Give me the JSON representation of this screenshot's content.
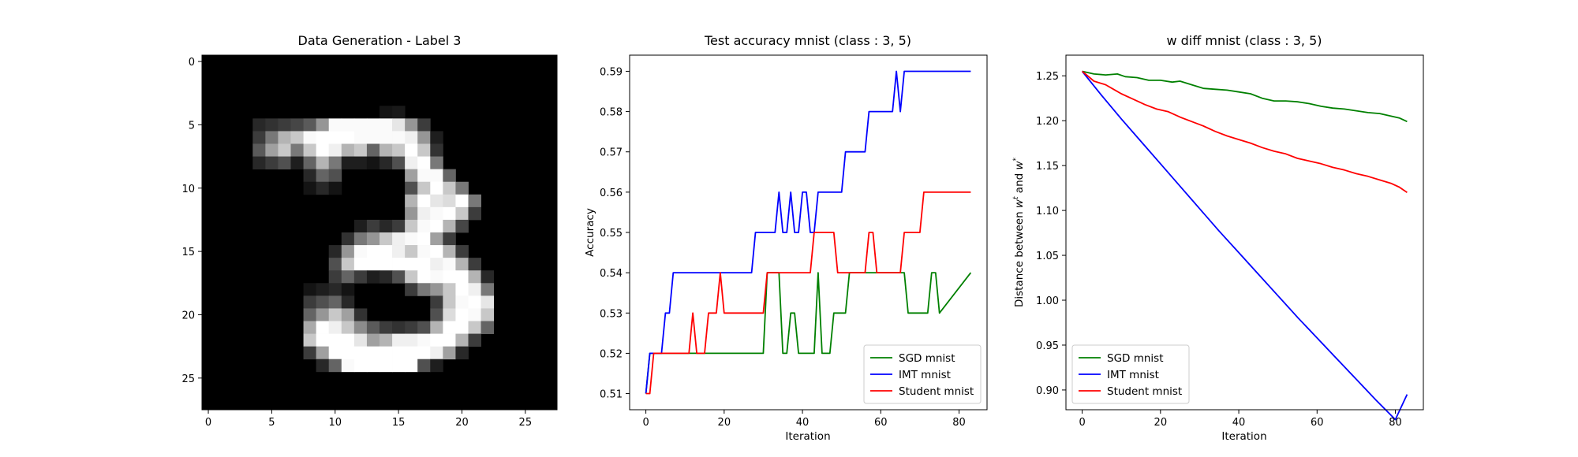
{
  "chart_data": [
    {
      "type": "heatmap",
      "title": "Data Generation - Label 3",
      "xlabel": "",
      "ylabel": "",
      "xlim": [
        -0.5,
        27.5
      ],
      "ylim": [
        27.5,
        -0.5
      ],
      "xticks": [
        0,
        5,
        10,
        15,
        20,
        25
      ],
      "yticks": [
        0,
        5,
        10,
        15,
        20,
        25
      ],
      "colormap": "gray",
      "pixels": [
        [
          0,
          0,
          0,
          0,
          0,
          0,
          0,
          0,
          0,
          0,
          0,
          0,
          0,
          0,
          0,
          0,
          0,
          0,
          0,
          0,
          0,
          0,
          0,
          0,
          0,
          0,
          0,
          0
        ],
        [
          0,
          0,
          0,
          0,
          0,
          0,
          0,
          0,
          0,
          0,
          0,
          0,
          0,
          0,
          0,
          0,
          0,
          0,
          0,
          0,
          0,
          0,
          0,
          0,
          0,
          0,
          0,
          0
        ],
        [
          0,
          0,
          0,
          0,
          0,
          0,
          0,
          0,
          0,
          0,
          0,
          0,
          0,
          0,
          0,
          0,
          0,
          0,
          0,
          0,
          0,
          0,
          0,
          0,
          0,
          0,
          0,
          0
        ],
        [
          0,
          0,
          0,
          0,
          0,
          0,
          0,
          0,
          0,
          0,
          0,
          0,
          0,
          0,
          0,
          0,
          0,
          0,
          0,
          0,
          0,
          0,
          0,
          0,
          0,
          0,
          0,
          0
        ],
        [
          0,
          0,
          0,
          0,
          0,
          0,
          0,
          0,
          0,
          0,
          0,
          0,
          0,
          0,
          20,
          25,
          0,
          0,
          0,
          0,
          0,
          0,
          0,
          0,
          0,
          0,
          0,
          0
        ],
        [
          0,
          0,
          0,
          0,
          40,
          50,
          60,
          70,
          90,
          150,
          250,
          250,
          250,
          250,
          250,
          230,
          150,
          60,
          0,
          0,
          0,
          0,
          0,
          0,
          0,
          0,
          0,
          0
        ],
        [
          0,
          0,
          0,
          0,
          60,
          120,
          180,
          200,
          250,
          255,
          255,
          255,
          250,
          250,
          250,
          250,
          240,
          150,
          30,
          0,
          0,
          0,
          0,
          0,
          0,
          0,
          0,
          0
        ],
        [
          0,
          0,
          0,
          0,
          90,
          160,
          200,
          120,
          200,
          255,
          240,
          180,
          200,
          100,
          180,
          200,
          255,
          200,
          50,
          0,
          0,
          0,
          0,
          0,
          0,
          0,
          0,
          0
        ],
        [
          0,
          0,
          0,
          0,
          40,
          60,
          80,
          30,
          100,
          180,
          120,
          30,
          30,
          20,
          40,
          80,
          240,
          255,
          120,
          0,
          0,
          0,
          0,
          0,
          0,
          0,
          0,
          0
        ],
        [
          0,
          0,
          0,
          0,
          0,
          0,
          0,
          0,
          40,
          100,
          80,
          0,
          0,
          0,
          0,
          0,
          160,
          250,
          250,
          100,
          0,
          0,
          0,
          0,
          0,
          0,
          0,
          0
        ],
        [
          0,
          0,
          0,
          0,
          0,
          0,
          0,
          0,
          20,
          40,
          20,
          0,
          0,
          0,
          0,
          0,
          80,
          200,
          255,
          200,
          120,
          0,
          0,
          0,
          0,
          0,
          0,
          0
        ],
        [
          0,
          0,
          0,
          0,
          0,
          0,
          0,
          0,
          0,
          0,
          0,
          0,
          0,
          0,
          0,
          0,
          180,
          255,
          230,
          220,
          255,
          120,
          0,
          0,
          0,
          0,
          0,
          0
        ],
        [
          0,
          0,
          0,
          0,
          0,
          0,
          0,
          0,
          0,
          0,
          0,
          0,
          0,
          0,
          0,
          0,
          150,
          240,
          250,
          255,
          200,
          60,
          0,
          0,
          0,
          0,
          0,
          0
        ],
        [
          0,
          0,
          0,
          0,
          0,
          0,
          0,
          0,
          0,
          0,
          0,
          0,
          30,
          60,
          40,
          60,
          200,
          250,
          255,
          180,
          70,
          0,
          0,
          0,
          0,
          0,
          0,
          0
        ],
        [
          0,
          0,
          0,
          0,
          0,
          0,
          0,
          0,
          0,
          0,
          0,
          50,
          120,
          150,
          200,
          240,
          250,
          255,
          160,
          60,
          0,
          0,
          0,
          0,
          0,
          0,
          0,
          0
        ],
        [
          0,
          0,
          0,
          0,
          0,
          0,
          0,
          0,
          0,
          0,
          40,
          150,
          250,
          255,
          255,
          240,
          200,
          250,
          255,
          180,
          60,
          0,
          0,
          0,
          0,
          0,
          0,
          0
        ],
        [
          0,
          0,
          0,
          0,
          0,
          0,
          0,
          0,
          0,
          0,
          80,
          200,
          255,
          255,
          255,
          255,
          255,
          255,
          240,
          250,
          180,
          60,
          0,
          0,
          0,
          0,
          0,
          0
        ],
        [
          0,
          0,
          0,
          0,
          0,
          0,
          0,
          0,
          0,
          0,
          60,
          100,
          60,
          30,
          40,
          80,
          200,
          255,
          250,
          255,
          255,
          180,
          40,
          0,
          0,
          0,
          0,
          0
        ],
        [
          0,
          0,
          0,
          0,
          0,
          0,
          0,
          0,
          20,
          30,
          40,
          20,
          0,
          0,
          0,
          0,
          60,
          120,
          150,
          200,
          255,
          240,
          120,
          0,
          0,
          0,
          0,
          0
        ],
        [
          0,
          0,
          0,
          0,
          0,
          0,
          0,
          0,
          60,
          80,
          100,
          40,
          0,
          0,
          0,
          0,
          0,
          0,
          60,
          200,
          250,
          255,
          230,
          0,
          0,
          0,
          0,
          0
        ],
        [
          0,
          0,
          0,
          0,
          0,
          0,
          0,
          0,
          100,
          150,
          200,
          160,
          50,
          0,
          0,
          0,
          0,
          0,
          80,
          220,
          255,
          250,
          200,
          0,
          0,
          0,
          0,
          0
        ],
        [
          0,
          0,
          0,
          0,
          0,
          0,
          0,
          0,
          170,
          255,
          240,
          200,
          140,
          90,
          60,
          50,
          60,
          80,
          180,
          255,
          255,
          200,
          100,
          0,
          0,
          0,
          0,
          0
        ],
        [
          0,
          0,
          0,
          0,
          0,
          0,
          0,
          0,
          200,
          255,
          255,
          255,
          230,
          160,
          180,
          240,
          240,
          250,
          255,
          255,
          180,
          60,
          0,
          0,
          0,
          0,
          0,
          0
        ],
        [
          0,
          0,
          0,
          0,
          0,
          0,
          0,
          0,
          60,
          160,
          255,
          255,
          255,
          255,
          255,
          255,
          255,
          255,
          240,
          160,
          40,
          0,
          0,
          0,
          0,
          0,
          0,
          0
        ],
        [
          0,
          0,
          0,
          0,
          0,
          0,
          0,
          0,
          0,
          40,
          100,
          250,
          255,
          255,
          255,
          255,
          255,
          80,
          30,
          0,
          0,
          0,
          0,
          0,
          0,
          0,
          0,
          0
        ],
        [
          0,
          0,
          0,
          0,
          0,
          0,
          0,
          0,
          0,
          0,
          0,
          0,
          0,
          0,
          0,
          0,
          0,
          0,
          0,
          0,
          0,
          0,
          0,
          0,
          0,
          0,
          0,
          0
        ],
        [
          0,
          0,
          0,
          0,
          0,
          0,
          0,
          0,
          0,
          0,
          0,
          0,
          0,
          0,
          0,
          0,
          0,
          0,
          0,
          0,
          0,
          0,
          0,
          0,
          0,
          0,
          0,
          0
        ],
        [
          0,
          0,
          0,
          0,
          0,
          0,
          0,
          0,
          0,
          0,
          0,
          0,
          0,
          0,
          0,
          0,
          0,
          0,
          0,
          0,
          0,
          0,
          0,
          0,
          0,
          0,
          0,
          0
        ]
      ]
    },
    {
      "type": "line",
      "title": "Test accuracy mnist (class : 3, 5)",
      "xlabel": "Iteration",
      "ylabel": "Accuracy",
      "xlim": [
        -4.15,
        87.15
      ],
      "ylim": [
        0.506,
        0.594
      ],
      "xticks": [
        0,
        20,
        40,
        60,
        80
      ],
      "yticks": [
        0.51,
        0.52,
        0.53,
        0.54,
        0.55,
        0.56,
        0.57,
        0.58,
        0.59
      ],
      "tick_decimals": 2,
      "legend": "lower-right",
      "grid": false,
      "series": [
        {
          "name": "SGD mnist",
          "color": "#008000",
          "x": [
            0,
            1,
            2,
            30,
            31,
            34,
            35,
            36,
            37,
            38,
            39,
            40,
            43,
            44,
            45,
            47,
            48,
            51,
            52,
            66,
            67,
            72,
            73,
            74,
            75,
            83
          ],
          "y": [
            0.51,
            0.52,
            0.52,
            0.52,
            0.54,
            0.54,
            0.52,
            0.52,
            0.53,
            0.53,
            0.52,
            0.52,
            0.52,
            0.54,
            0.52,
            0.52,
            0.53,
            0.53,
            0.54,
            0.54,
            0.53,
            0.53,
            0.54,
            0.54,
            0.53,
            0.54
          ]
        },
        {
          "name": "IMT mnist",
          "color": "#0000ff",
          "x": [
            0,
            1,
            4,
            5,
            6,
            7,
            27,
            28,
            33,
            34,
            35,
            36,
            37,
            38,
            39,
            40,
            41,
            42,
            43,
            44,
            50,
            51,
            56,
            57,
            63,
            64,
            65,
            66,
            83
          ],
          "y": [
            0.51,
            0.52,
            0.52,
            0.53,
            0.53,
            0.54,
            0.54,
            0.55,
            0.55,
            0.56,
            0.55,
            0.55,
            0.56,
            0.55,
            0.55,
            0.56,
            0.56,
            0.55,
            0.55,
            0.56,
            0.56,
            0.57,
            0.57,
            0.58,
            0.58,
            0.59,
            0.58,
            0.59,
            0.59
          ]
        },
        {
          "name": "Student mnist",
          "color": "#ff0000",
          "x": [
            0,
            1,
            2,
            11,
            12,
            13,
            14,
            15,
            16,
            17,
            18,
            19,
            20,
            30,
            31,
            37,
            38,
            42,
            43,
            48,
            49,
            56,
            57,
            58,
            59,
            64,
            65,
            66,
            67,
            70,
            71,
            83
          ],
          "y": [
            0.51,
            0.51,
            0.52,
            0.52,
            0.53,
            0.52,
            0.52,
            0.52,
            0.53,
            0.53,
            0.53,
            0.54,
            0.53,
            0.53,
            0.54,
            0.54,
            0.54,
            0.54,
            0.55,
            0.55,
            0.54,
            0.54,
            0.55,
            0.55,
            0.54,
            0.54,
            0.54,
            0.55,
            0.55,
            0.55,
            0.56,
            0.56
          ]
        }
      ]
    },
    {
      "type": "line",
      "title": "w diff mnist (class : 3, 5)",
      "xlabel": "Iteration",
      "ylabel": "Distance between w^t and w^*",
      "ylabel_parts": [
        "Distance between ",
        "w",
        "t",
        " and ",
        "w",
        "*"
      ],
      "xlim": [
        -4.15,
        87.15
      ],
      "ylim": [
        0.878,
        1.273
      ],
      "xticks": [
        0,
        20,
        40,
        60,
        80
      ],
      "yticks": [
        0.9,
        0.95,
        1.0,
        1.05,
        1.1,
        1.15,
        1.2,
        1.25
      ],
      "tick_decimals": 2,
      "legend": "lower-left",
      "grid": false,
      "series": [
        {
          "name": "SGD mnist",
          "color": "#008000",
          "x": [
            0,
            3,
            6,
            9,
            11,
            14,
            17,
            20,
            23,
            25,
            28,
            31,
            34,
            37,
            40,
            43,
            46,
            49,
            52,
            55,
            58,
            61,
            64,
            67,
            70,
            73,
            76,
            79,
            81,
            83
          ],
          "y": [
            1.255,
            1.252,
            1.251,
            1.252,
            1.249,
            1.248,
            1.245,
            1.245,
            1.243,
            1.244,
            1.24,
            1.236,
            1.235,
            1.234,
            1.232,
            1.23,
            1.225,
            1.222,
            1.222,
            1.221,
            1.219,
            1.216,
            1.214,
            1.213,
            1.211,
            1.209,
            1.208,
            1.205,
            1.203,
            1.199
          ]
        },
        {
          "name": "IMT mnist",
          "color": "#0000ff",
          "x": [
            0,
            5,
            10,
            15,
            20,
            25,
            30,
            35,
            40,
            45,
            50,
            55,
            60,
            65,
            70,
            75,
            80,
            83
          ],
          "y": [
            1.255,
            1.228,
            1.202,
            1.177,
            1.152,
            1.127,
            1.102,
            1.077,
            1.053,
            1.029,
            1.005,
            0.981,
            0.958,
            0.935,
            0.912,
            0.889,
            0.867,
            0.895
          ]
        },
        {
          "name": "Student mnist",
          "color": "#ff0000",
          "x": [
            0,
            3,
            6,
            8,
            10,
            13,
            16,
            19,
            22,
            25,
            28,
            31,
            34,
            37,
            40,
            43,
            46,
            49,
            52,
            55,
            58,
            61,
            64,
            67,
            70,
            73,
            76,
            79,
            81,
            83
          ],
          "y": [
            1.255,
            1.244,
            1.24,
            1.235,
            1.23,
            1.224,
            1.218,
            1.213,
            1.21,
            1.204,
            1.199,
            1.194,
            1.188,
            1.183,
            1.179,
            1.175,
            1.17,
            1.166,
            1.163,
            1.158,
            1.155,
            1.152,
            1.148,
            1.145,
            1.141,
            1.138,
            1.134,
            1.13,
            1.126,
            1.12
          ]
        }
      ]
    }
  ]
}
